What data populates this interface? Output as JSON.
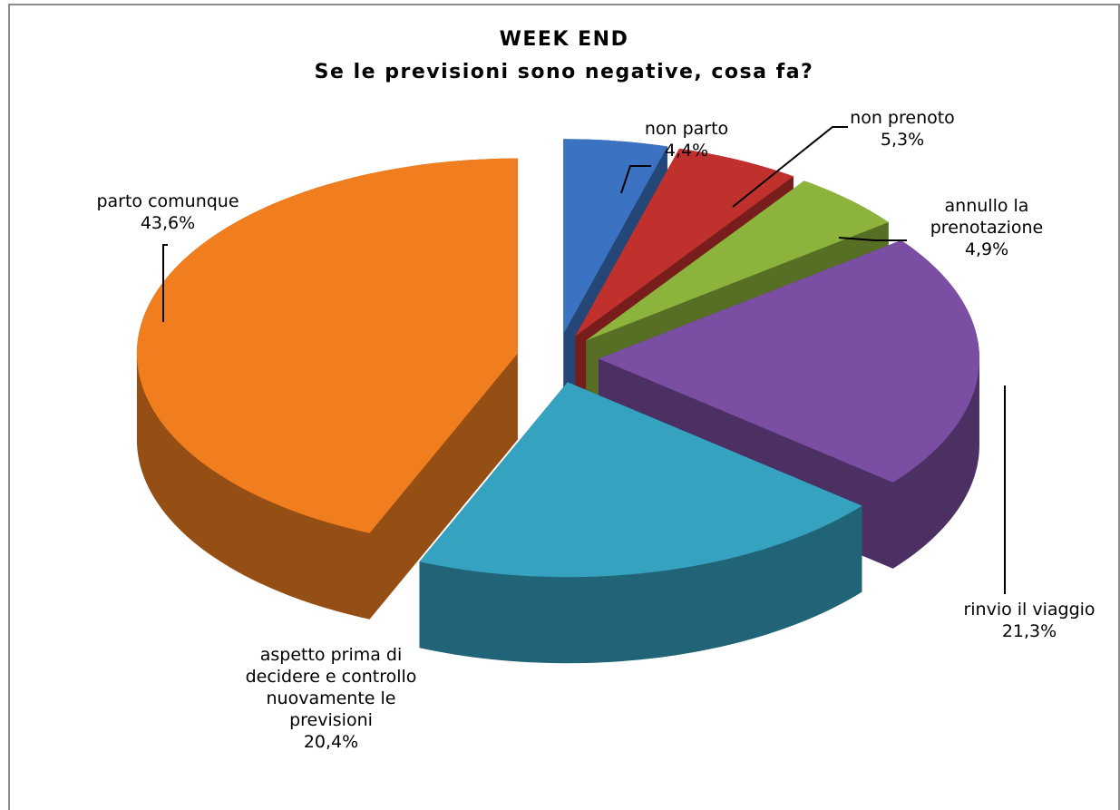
{
  "chart_data": {
    "type": "pie",
    "title": "WEEK END",
    "subtitle": "Se le previsioni sono negative, cosa fa?",
    "categories": [
      "non parto",
      "non prenoto",
      "annullo la prenotazione",
      "rinvio il viaggio",
      "aspetto prima di decidere e controllo nuovamente le previsioni",
      "parto comunque"
    ],
    "values": [
      4.4,
      5.3,
      4.9,
      21.3,
      20.4,
      43.6
    ],
    "value_labels": [
      "4,4%",
      "5,3%",
      "4,9%",
      "21,3%",
      "20,4%",
      "43,6%"
    ],
    "colors": [
      "#3b73c2",
      "#c0312d",
      "#8cb33c",
      "#7a4ea2",
      "#35a2c0",
      "#f07e1e"
    ]
  }
}
